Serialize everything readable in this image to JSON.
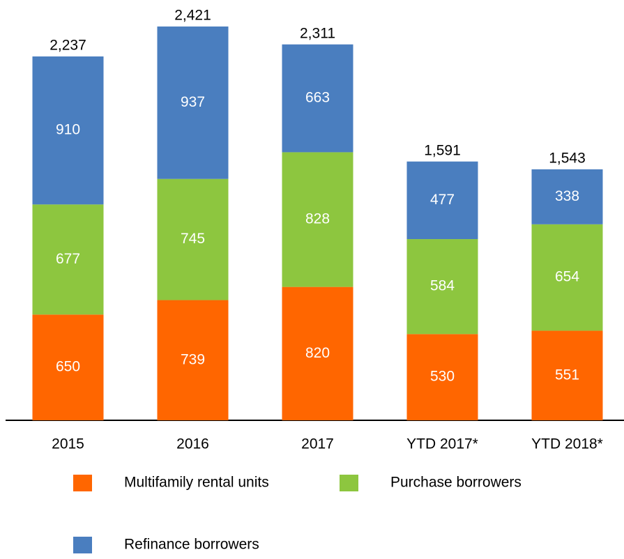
{
  "chart_data": {
    "type": "stacked_bar",
    "categories": [
      "2015",
      "2016",
      "2017",
      "YTD 2017*",
      "YTD 2018*"
    ],
    "series": [
      {
        "name": "Multifamily rental units",
        "color": "#ff6600",
        "values": [
          650,
          739,
          820,
          530,
          551
        ]
      },
      {
        "name": "Purchase borrowers",
        "color": "#8dc63f",
        "values": [
          677,
          745,
          828,
          584,
          654
        ]
      },
      {
        "name": "Refinance borrowers",
        "color": "#4a7ebf",
        "values": [
          910,
          937,
          663,
          477,
          338
        ]
      }
    ],
    "totals": {
      "values": [
        2237,
        2421,
        2311,
        1591,
        1543
      ],
      "value_labels": [
        "2,237",
        "2,421",
        "2,311",
        "1,591",
        "1,543"
      ]
    },
    "ylim": [
      0,
      2584
    ],
    "legend": "bottom"
  }
}
